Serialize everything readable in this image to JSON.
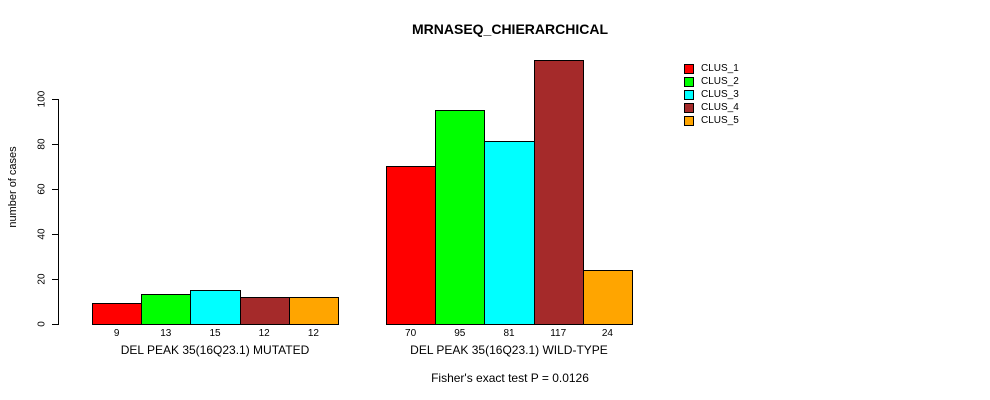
{
  "chart_data": {
    "type": "bar",
    "title": "MRNASEQ_CHIERARCHICAL",
    "ylabel": "number of cases",
    "xlabel": "",
    "categories": [
      "DEL PEAK 35(16Q23.1) MUTATED",
      "DEL PEAK 35(16Q23.1) WILD-TYPE"
    ],
    "series": [
      {
        "name": "CLUS_1",
        "color": "#FF0000",
        "values": [
          9,
          70
        ]
      },
      {
        "name": "CLUS_2",
        "color": "#00FF00",
        "values": [
          13,
          95
        ]
      },
      {
        "name": "CLUS_3",
        "color": "#00FFFF",
        "values": [
          15,
          81
        ]
      },
      {
        "name": "CLUS_4",
        "color": "#A52A2A",
        "values": [
          12,
          117
        ]
      },
      {
        "name": "CLUS_5",
        "color": "#FFA500",
        "values": [
          12,
          24
        ]
      }
    ],
    "yticks": [
      0,
      20,
      40,
      60,
      80,
      100
    ],
    "axis_range": [
      0,
      100
    ],
    "bar_value_labels": true,
    "grid": "off",
    "legend_position": "right",
    "annotation": "Fisher's exact test P = 0.0126",
    "text_color": "#000000",
    "background_color": "#FFFFFF"
  }
}
